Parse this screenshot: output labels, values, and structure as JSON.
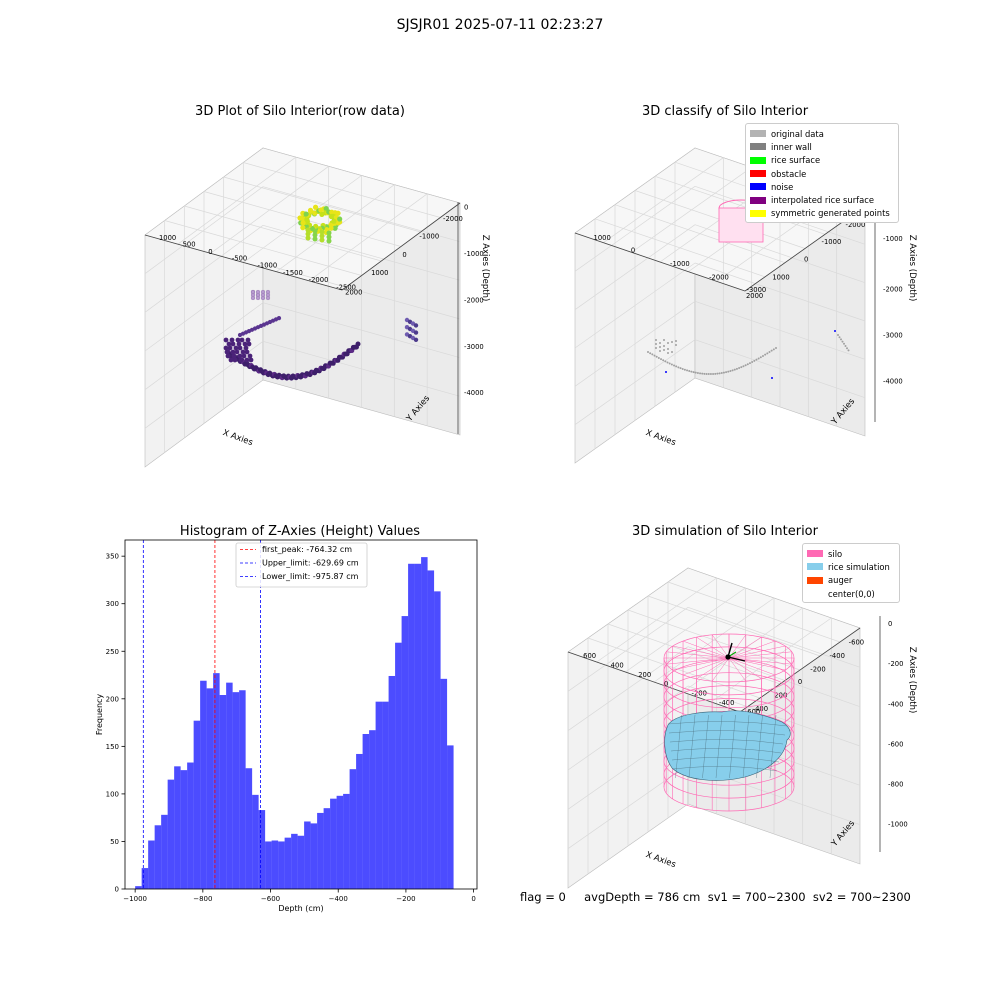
{
  "suptitle": "SJSJR01 2025-07-11 02:23:27",
  "footer": "flag = 0     avgDepth = 786 cm  sv1 = 700~2300  sv2 = 700~2300",
  "panels": {
    "raw": {
      "title": "3D Plot of Silo Interior(row data)",
      "xlabel": "X Axies",
      "ylabel": "Y Axies",
      "zlabel": "Z Axies (Depth)",
      "xticks": [
        "-2000",
        "-1000",
        "0",
        "1000",
        "2000"
      ],
      "yticks": [
        "1000",
        "500",
        "0",
        "-500",
        "-1000",
        "-1500",
        "-2000",
        "-2500"
      ],
      "zticks": [
        "0",
        "-1000",
        "-2000",
        "-3000",
        "-4000"
      ]
    },
    "classify": {
      "title": "3D classify of Silo Interior",
      "xlabel": "X Axies",
      "ylabel": "Y Axies",
      "zlabel": "Z Axies (Depth)",
      "xticks": [
        "-2000",
        "-1000",
        "0",
        "1000",
        "2000"
      ],
      "yticks": [
        "1000",
        "0",
        "-1000",
        "-2000",
        "-3000"
      ],
      "zticks": [
        "-1000",
        "-2000",
        "-3000",
        "-4000"
      ],
      "legend": [
        {
          "label": "original data",
          "color": "#b3b3b3"
        },
        {
          "label": "inner wall",
          "color": "#808080"
        },
        {
          "label": "rice surface",
          "color": "#00ff00"
        },
        {
          "label": "obstacle",
          "color": "#ff0000"
        },
        {
          "label": "noise",
          "color": "#0000ff"
        },
        {
          "label": "interpolated rice surface",
          "color": "#800080"
        },
        {
          "label": "symmetric generated points",
          "color": "#ffff00"
        }
      ]
    },
    "simulation": {
      "title": "3D simulation of Silo Interior",
      "xlabel": "X Axies",
      "ylabel": "Y Axies",
      "zlabel": "Z Axies (Depth)",
      "xticks": [
        "-600",
        "-400",
        "-200",
        "0",
        "200",
        "400",
        "600"
      ],
      "yticks": [
        "600",
        "400",
        "200",
        "0",
        "-200",
        "-400",
        "-600"
      ],
      "zticks": [
        "0",
        "-200",
        "-400",
        "-600",
        "-800",
        "-1000"
      ],
      "legend": [
        {
          "label": "silo",
          "color": "#ff69b4"
        },
        {
          "label": "rice simulation",
          "color": "#87ceeb"
        },
        {
          "label": "auger",
          "color": "#ff4500"
        },
        {
          "label": "center(0,0)",
          "color": "#ffffff"
        }
      ]
    }
  },
  "chart_data": [
    {
      "type": "bar",
      "title": "Histogram of Z-Axies (Height) Values",
      "xlabel": "Depth (cm)",
      "ylabel": "Frequency",
      "xlim": [
        -1030,
        10
      ],
      "ylim": [
        0,
        367
      ],
      "xticks": [
        -1000,
        -800,
        -600,
        -400,
        -200,
        0
      ],
      "yticks": [
        0,
        50,
        100,
        150,
        200,
        250,
        300,
        350
      ],
      "bar_color": "#0000ff",
      "bin_start": -1000,
      "bin_width": 19.2,
      "values": [
        3,
        22,
        51,
        67,
        78,
        115,
        129,
        125,
        133,
        177,
        219,
        211,
        227,
        204,
        217,
        207,
        209,
        127,
        99,
        83,
        50,
        51,
        50,
        54,
        58,
        56,
        71,
        69,
        80,
        85,
        95,
        98,
        100,
        126,
        142,
        163,
        167,
        197,
        197,
        224,
        259,
        287,
        342,
        342,
        349,
        335,
        313,
        221,
        151
      ],
      "vlines": [
        {
          "label": "first_peak: -764.32 cm",
          "x": -764.32,
          "color": "#ff0000"
        },
        {
          "label": "Upper_limit: -629.69 cm",
          "x": -629.69,
          "color": "#0000ff"
        },
        {
          "label": "Lower_limit: -975.87 cm",
          "x": -975.87,
          "color": "#0000ff"
        }
      ]
    }
  ]
}
